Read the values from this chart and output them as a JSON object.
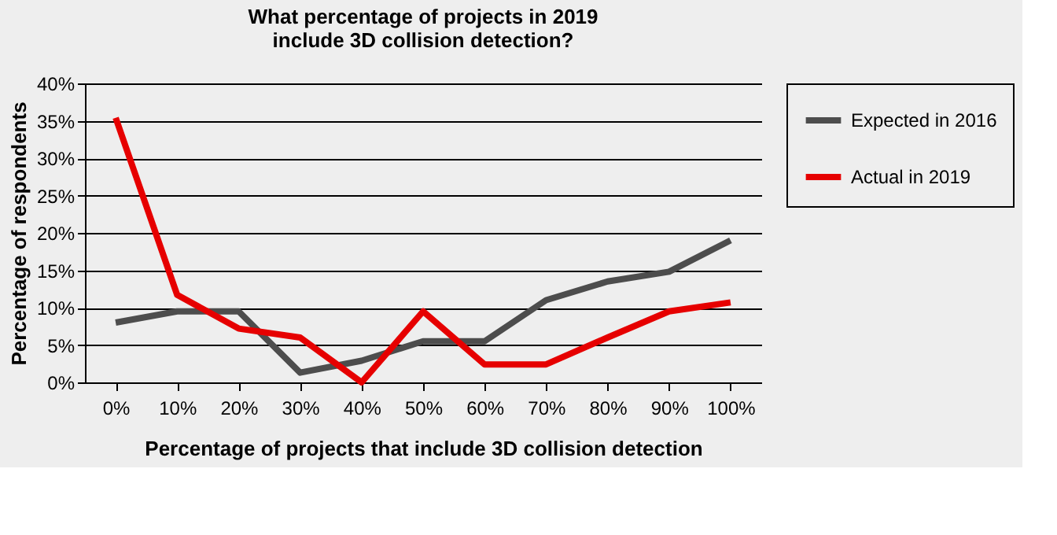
{
  "chart_data": {
    "type": "line",
    "title": "What percentage of projects in 2019\ninclude 3D collision detection?",
    "xlabel": "Percentage of projects that include 3D collision detection",
    "ylabel": "Percentage of respondents",
    "categories": [
      "0%",
      "10%",
      "20%",
      "30%",
      "40%",
      "50%",
      "60%",
      "70%",
      "80%",
      "90%",
      "100%"
    ],
    "series": [
      {
        "name": "Expected in 2016",
        "color": "#4d4d4d",
        "values": [
          8,
          9.5,
          9.5,
          1.3,
          2.9,
          5.5,
          5.5,
          11,
          13.5,
          14.8,
          19
        ]
      },
      {
        "name": "Actual in 2019",
        "color": "#e60000",
        "values": [
          35.4,
          11.7,
          7.2,
          6,
          0,
          9.5,
          2.4,
          2.4,
          6,
          9.5,
          10.7
        ]
      }
    ],
    "ylim": [
      0,
      40
    ],
    "yticks": [
      {
        "value": 0,
        "label": "0%"
      },
      {
        "value": 5,
        "label": "5%"
      },
      {
        "value": 10,
        "label": "10%"
      },
      {
        "value": 15,
        "label": "15%"
      },
      {
        "value": 20,
        "label": "20%"
      },
      {
        "value": 25,
        "label": "25%"
      },
      {
        "value": 30,
        "label": "30%"
      },
      {
        "value": 35,
        "label": "35%"
      },
      {
        "value": 40,
        "label": "40%"
      }
    ],
    "grid": "y",
    "legend": "right",
    "marker": "none",
    "line_style": "solid"
  }
}
